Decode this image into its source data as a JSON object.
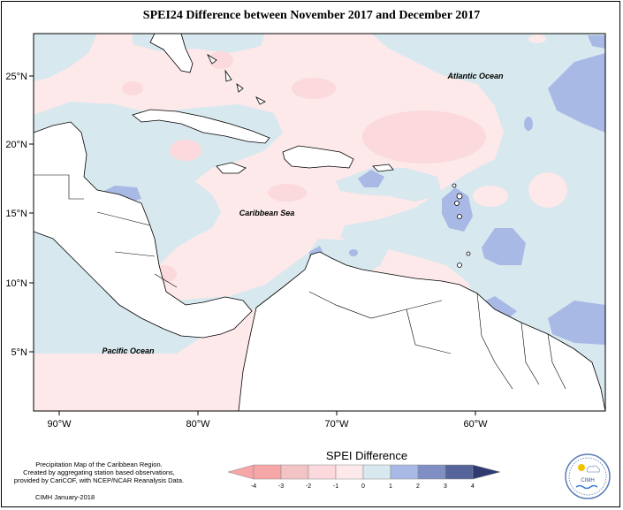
{
  "title": "SPEI24 Difference between November 2017 and December 2017",
  "axes": {
    "longitude_labels": [
      "90°W",
      "80°W",
      "70°W",
      "60°W"
    ],
    "latitude_labels": [
      "25°N",
      "20°N",
      "15°N",
      "10°N",
      "5°N"
    ]
  },
  "places": {
    "atlantic": "Atlantic Ocean",
    "caribbean": "Caribbean Sea",
    "pacific": "Pacific Ocean"
  },
  "credits": {
    "line1": "Precipitation Map of the Caribbean Region.",
    "line2": "Created by aggregating station based observations,",
    "line3": "provided by CariCOF, with NCEP/NCAR Reanalysis Data.",
    "issued": "CIMH January-2018"
  },
  "legend": {
    "title": "SPEI Difference",
    "ticks": [
      "-4",
      "-3",
      "-2",
      "-1",
      "0",
      "1",
      "2",
      "3",
      "4"
    ],
    "colors": [
      "#f7a6a8",
      "#f2c4c6",
      "#fbd9dc",
      "#fde9ea",
      "#d7e8ee",
      "#a9b9e6",
      "#7d8fc3",
      "#55659a",
      "#2f3a70"
    ]
  },
  "logo": {
    "name": "CIMH"
  },
  "colors": {
    "slight_positive": "#d7e8ee",
    "moderate_positive": "#a9b9e6",
    "slight_negative": "#fde9ea",
    "moderate_negative": "#fbd9dc"
  }
}
